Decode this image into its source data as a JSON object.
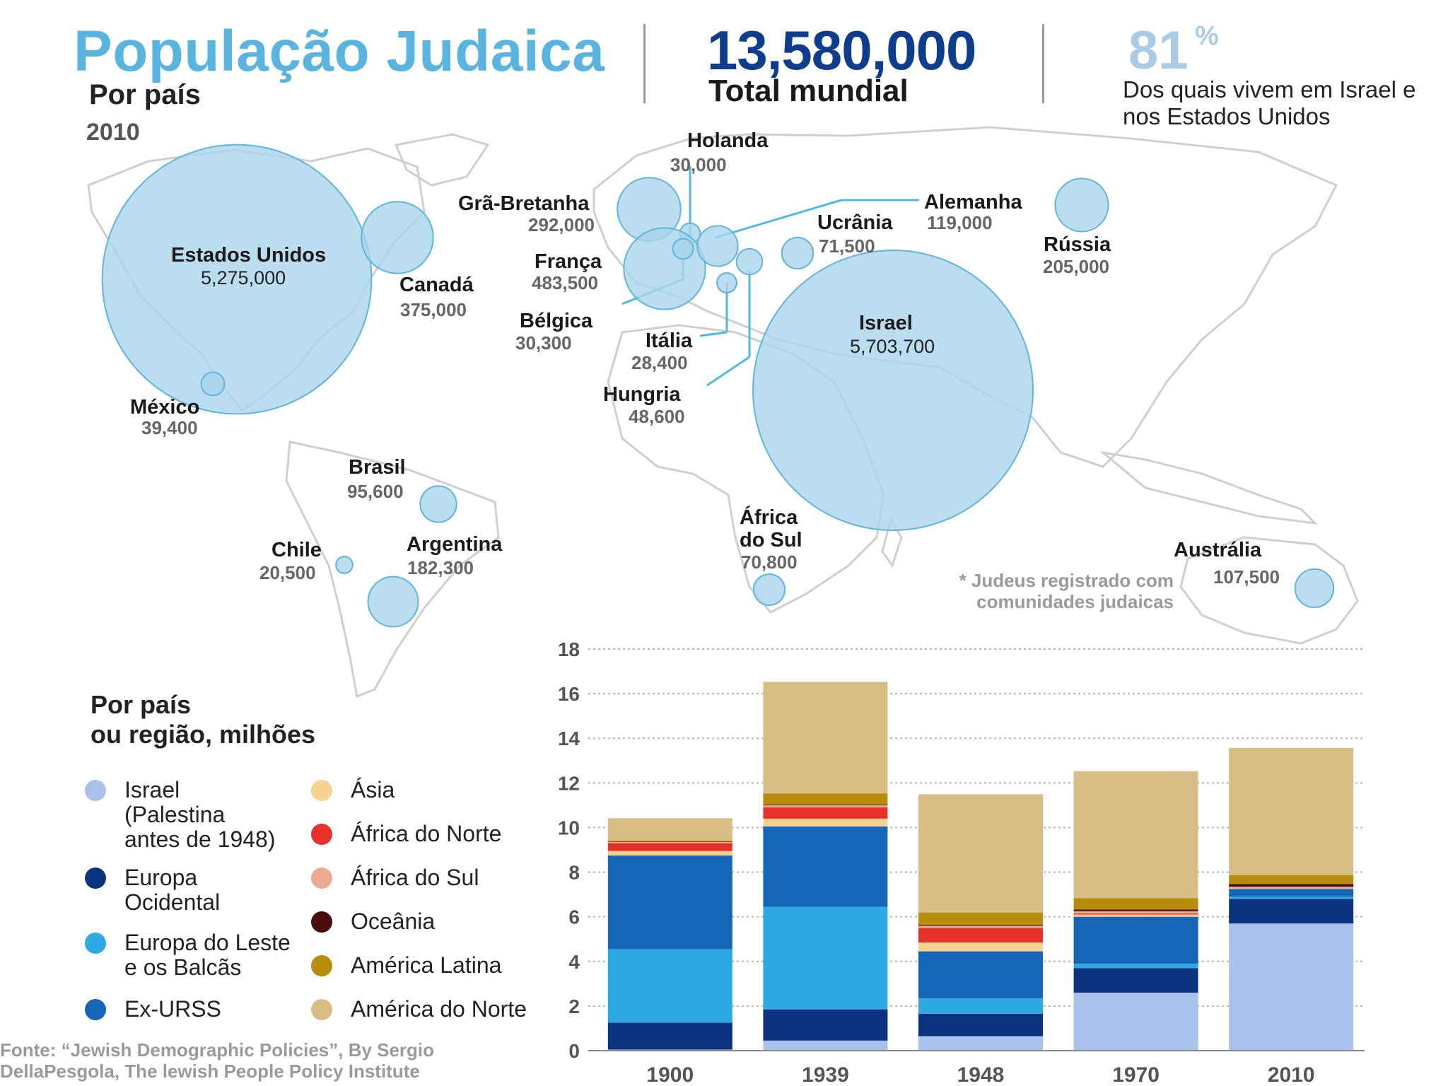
{
  "header": {
    "title": "População Judaica",
    "subtitle": "Por país",
    "year": "2010",
    "total_value": "13,580,000",
    "total_label": "Total mundial",
    "pct_value": "81",
    "pct_sign": "%",
    "pct_note": "Dos quais vivem em Israel e nos Estados Unidos"
  },
  "map": {
    "bubble_color": "#a9d4ec",
    "countries": [
      {
        "id": "usa",
        "name": "Estados Unidos",
        "value": "5,275,000",
        "population": 5275000
      },
      {
        "id": "canada",
        "name": "Canadá",
        "value": "375,000",
        "population": 375000
      },
      {
        "id": "mexico",
        "name": "México",
        "value": "39,400",
        "population": 39400
      },
      {
        "id": "brasil",
        "name": "Brasil",
        "value": "95,600",
        "population": 95600
      },
      {
        "id": "chile",
        "name": "Chile",
        "value": "20,500",
        "population": 20500
      },
      {
        "id": "argentina",
        "name": "Argentina",
        "value": "182,300",
        "population": 182300
      },
      {
        "id": "holanda",
        "name": "Holanda",
        "value": "30,000",
        "population": 30000
      },
      {
        "id": "gra-bretanha",
        "name": "Grã-Bretanha",
        "value": "292,000",
        "population": 292000
      },
      {
        "id": "franca",
        "name": "França",
        "value": "483,500",
        "population": 483500
      },
      {
        "id": "belgica",
        "name": "Bélgica",
        "value": "30,300",
        "population": 30300
      },
      {
        "id": "italia",
        "name": "Itália",
        "value": "28,400",
        "population": 28400
      },
      {
        "id": "hungria",
        "name": "Hungria",
        "value": "48,600",
        "population": 48600
      },
      {
        "id": "alemanha",
        "name": "Alemanha",
        "value": "119,000",
        "population": 119000
      },
      {
        "id": "ucrania",
        "name": "Ucrânia",
        "value": "71,500",
        "population": 71500
      },
      {
        "id": "russia",
        "name": "Rússia",
        "value": "205,000",
        "population": 205000
      },
      {
        "id": "israel",
        "name": "Israel",
        "value": "5,703,700",
        "population": 5703700
      },
      {
        "id": "africa-do-sul",
        "name": "África\ndo Sul",
        "value": "70,800",
        "population": 70800
      },
      {
        "id": "australia",
        "name": "Austrália",
        "value": "107,500",
        "population": 107500
      }
    ],
    "note": "* Judeus registrado com comunidades judaicas"
  },
  "legend": {
    "title": "Por país\nou região, milhões",
    "items": [
      {
        "label": "Israel\n(Palestina\nantes de 1948)",
        "color": "#a8c2ec"
      },
      {
        "label": "Europa\nOcidental",
        "color": "#0c3380"
      },
      {
        "label": "Europa do Leste\ne os Balcãs",
        "color": "#2ea9e2"
      },
      {
        "label": "Ex-URSS",
        "color": "#1565b8"
      },
      {
        "label": "Ásia",
        "color": "#f6d390"
      },
      {
        "label": "África do Norte",
        "color": "#e6302a"
      },
      {
        "label": "África do Sul",
        "color": "#eda992"
      },
      {
        "label": "Oceânia",
        "color": "#4a0d0d"
      },
      {
        "label": "América Latina",
        "color": "#b88d0c"
      },
      {
        "label": "América do Norte",
        "color": "#d8bd84"
      }
    ]
  },
  "chart_data": {
    "type": "bar",
    "stacked": true,
    "categories": [
      "1900",
      "1939",
      "1948",
      "1970",
      "2010"
    ],
    "ylim": [
      0,
      18
    ],
    "yticks": [
      0,
      2,
      4,
      6,
      8,
      10,
      12,
      14,
      16,
      18
    ],
    "grid": true,
    "series": [
      {
        "name": "Israel (Palestina antes de 1948)",
        "color": "#a8c2ec",
        "values": [
          0.05,
          0.45,
          0.65,
          2.6,
          5.7
        ]
      },
      {
        "name": "Europa Ocidental",
        "color": "#0c3380",
        "values": [
          1.2,
          1.4,
          1.0,
          1.1,
          1.1
        ]
      },
      {
        "name": "Europa do Leste e os Balcãs",
        "color": "#2ea9e2",
        "values": [
          3.3,
          4.6,
          0.7,
          0.2,
          0.1
        ]
      },
      {
        "name": "Ex-URSS",
        "color": "#1565b8",
        "values": [
          4.2,
          3.6,
          2.1,
          2.1,
          0.35
        ]
      },
      {
        "name": "Ásia",
        "color": "#f6d390",
        "values": [
          0.2,
          0.35,
          0.4,
          0.1,
          0.02
        ]
      },
      {
        "name": "África do Norte",
        "color": "#e6302a",
        "values": [
          0.35,
          0.5,
          0.65,
          0.05,
          0.01
        ]
      },
      {
        "name": "África do Sul",
        "color": "#eda992",
        "values": [
          0.05,
          0.1,
          0.1,
          0.1,
          0.07
        ]
      },
      {
        "name": "Oceânia",
        "color": "#4a0d0d",
        "values": [
          0.02,
          0.03,
          0.04,
          0.08,
          0.12
        ]
      },
      {
        "name": "América Latina",
        "color": "#b88d0c",
        "values": [
          0.05,
          0.5,
          0.55,
          0.5,
          0.4
        ]
      },
      {
        "name": "América do Norte",
        "color": "#d8bd84",
        "values": [
          1.0,
          5.0,
          5.3,
          5.7,
          5.7
        ]
      }
    ]
  },
  "source": "Fonte: “Jewish Demographic Policies”, By Sergio\nDellaPesgola, The lewish People Policy Institute"
}
